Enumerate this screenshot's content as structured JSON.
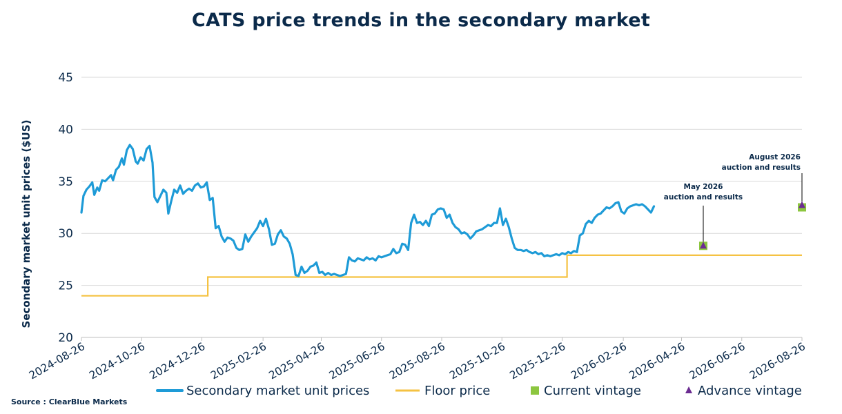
{
  "title": "CATS price trends in the secondary market",
  "source": "Source : ClearBlue Markets",
  "colors": {
    "secondary": "#1e9bd7",
    "floor": "#f5c242",
    "current_vintage": "#8cc63f",
    "advance_vintage": "#6b2c91",
    "grid": "#d9d9d9",
    "text": "#0b2a4a"
  },
  "chart_data": {
    "type": "line",
    "title": "CATS price trends in the secondary market",
    "xlabel": "",
    "ylabel": "Secondary market unit prices ($US)",
    "ylim": [
      20,
      45
    ],
    "y_ticks": [
      "20",
      "25",
      "30",
      "35",
      "40",
      "45"
    ],
    "xlim": [
      "2024-08-26",
      "2026-08-26"
    ],
    "x_ticks": [
      "2024-08-26",
      "2024-10-26",
      "2024-12-26",
      "2025-02-26",
      "2025-04-26",
      "2025-06-26",
      "2025-08-26",
      "2025-10-26",
      "2025-12-26",
      "2026-02-26",
      "2026-04-26",
      "2026-06-26",
      "2026-08-26"
    ],
    "grid": true,
    "legend_position": "bottom",
    "series": [
      {
        "name": "Secondary market unit prices",
        "kind": "line",
        "points": [
          [
            "2024-08-26",
            32.0
          ],
          [
            "2024-08-28",
            33.6
          ],
          [
            "2024-08-31",
            34.2
          ],
          [
            "2024-09-03",
            34.5
          ],
          [
            "2024-09-06",
            34.9
          ],
          [
            "2024-09-08",
            33.7
          ],
          [
            "2024-09-11",
            34.4
          ],
          [
            "2024-09-13",
            34.1
          ],
          [
            "2024-09-16",
            35.1
          ],
          [
            "2024-09-19",
            35.0
          ],
          [
            "2024-09-22",
            35.3
          ],
          [
            "2024-09-25",
            35.6
          ],
          [
            "2024-09-27",
            35.1
          ],
          [
            "2024-09-30",
            36.1
          ],
          [
            "2024-10-03",
            36.4
          ],
          [
            "2024-10-06",
            37.2
          ],
          [
            "2024-10-08",
            36.6
          ],
          [
            "2024-10-11",
            38.0
          ],
          [
            "2024-10-14",
            38.5
          ],
          [
            "2024-10-17",
            38.1
          ],
          [
            "2024-10-20",
            36.9
          ],
          [
            "2024-10-22",
            36.7
          ],
          [
            "2024-10-25",
            37.3
          ],
          [
            "2024-10-28",
            37.0
          ],
          [
            "2024-10-31",
            38.1
          ],
          [
            "2024-11-03",
            38.4
          ],
          [
            "2024-11-06",
            36.8
          ],
          [
            "2024-11-08",
            33.5
          ],
          [
            "2024-11-11",
            33.0
          ],
          [
            "2024-11-14",
            33.6
          ],
          [
            "2024-11-17",
            34.2
          ],
          [
            "2024-11-20",
            33.9
          ],
          [
            "2024-11-22",
            31.9
          ],
          [
            "2024-11-25",
            33.1
          ],
          [
            "2024-11-28",
            34.2
          ],
          [
            "2024-12-01",
            33.9
          ],
          [
            "2024-12-04",
            34.6
          ],
          [
            "2024-12-07",
            33.8
          ],
          [
            "2024-12-10",
            34.1
          ],
          [
            "2024-12-13",
            34.3
          ],
          [
            "2024-12-16",
            34.1
          ],
          [
            "2024-12-19",
            34.6
          ],
          [
            "2024-12-22",
            34.8
          ],
          [
            "2024-12-25",
            34.4
          ],
          [
            "2024-12-28",
            34.5
          ],
          [
            "2024-12-31",
            34.9
          ],
          [
            "2025-01-03",
            33.2
          ],
          [
            "2025-01-06",
            33.4
          ],
          [
            "2025-01-09",
            30.5
          ],
          [
            "2025-01-12",
            30.7
          ],
          [
            "2025-01-15",
            29.7
          ],
          [
            "2025-01-18",
            29.2
          ],
          [
            "2025-01-21",
            29.6
          ],
          [
            "2025-01-24",
            29.5
          ],
          [
            "2025-01-27",
            29.3
          ],
          [
            "2025-01-30",
            28.6
          ],
          [
            "2025-02-02",
            28.4
          ],
          [
            "2025-02-05",
            28.5
          ],
          [
            "2025-02-08",
            29.9
          ],
          [
            "2025-02-11",
            29.2
          ],
          [
            "2025-02-14",
            29.7
          ],
          [
            "2025-02-17",
            30.1
          ],
          [
            "2025-02-20",
            30.5
          ],
          [
            "2025-02-23",
            31.2
          ],
          [
            "2025-02-26",
            30.7
          ],
          [
            "2025-03-01",
            31.4
          ],
          [
            "2025-03-04",
            30.4
          ],
          [
            "2025-03-07",
            28.9
          ],
          [
            "2025-03-10",
            29.0
          ],
          [
            "2025-03-13",
            29.9
          ],
          [
            "2025-03-16",
            30.3
          ],
          [
            "2025-03-19",
            29.7
          ],
          [
            "2025-03-22",
            29.5
          ],
          [
            "2025-03-25",
            29.0
          ],
          [
            "2025-03-28",
            28.0
          ],
          [
            "2025-03-31",
            26.0
          ],
          [
            "2025-04-03",
            25.9
          ],
          [
            "2025-04-06",
            26.8
          ],
          [
            "2025-04-09",
            26.2
          ],
          [
            "2025-04-12",
            26.4
          ],
          [
            "2025-04-15",
            26.8
          ],
          [
            "2025-04-18",
            26.9
          ],
          [
            "2025-04-21",
            27.2
          ],
          [
            "2025-04-24",
            26.2
          ],
          [
            "2025-04-27",
            26.3
          ],
          [
            "2025-04-30",
            26.0
          ],
          [
            "2025-05-03",
            26.2
          ],
          [
            "2025-05-06",
            26.0
          ],
          [
            "2025-05-09",
            26.1
          ],
          [
            "2025-05-12",
            26.0
          ],
          [
            "2025-05-15",
            25.9
          ],
          [
            "2025-05-18",
            26.0
          ],
          [
            "2025-05-21",
            26.1
          ],
          [
            "2025-05-24",
            27.7
          ],
          [
            "2025-05-27",
            27.4
          ],
          [
            "2025-05-30",
            27.3
          ],
          [
            "2025-06-02",
            27.6
          ],
          [
            "2025-06-05",
            27.5
          ],
          [
            "2025-06-08",
            27.4
          ],
          [
            "2025-06-11",
            27.7
          ],
          [
            "2025-06-14",
            27.5
          ],
          [
            "2025-06-17",
            27.6
          ],
          [
            "2025-06-20",
            27.4
          ],
          [
            "2025-06-23",
            27.8
          ],
          [
            "2025-06-26",
            27.7
          ],
          [
            "2025-06-29",
            27.8
          ],
          [
            "2025-07-02",
            27.9
          ],
          [
            "2025-07-05",
            28.0
          ],
          [
            "2025-07-08",
            28.5
          ],
          [
            "2025-07-11",
            28.1
          ],
          [
            "2025-07-14",
            28.2
          ],
          [
            "2025-07-17",
            29.0
          ],
          [
            "2025-07-20",
            28.9
          ],
          [
            "2025-07-23",
            28.4
          ],
          [
            "2025-07-26",
            31.0
          ],
          [
            "2025-07-29",
            31.8
          ],
          [
            "2025-08-01",
            31.0
          ],
          [
            "2025-08-04",
            31.1
          ],
          [
            "2025-08-07",
            30.8
          ],
          [
            "2025-08-10",
            31.2
          ],
          [
            "2025-08-13",
            30.7
          ],
          [
            "2025-08-16",
            31.8
          ],
          [
            "2025-08-19",
            31.9
          ],
          [
            "2025-08-22",
            32.3
          ],
          [
            "2025-08-25",
            32.4
          ],
          [
            "2025-08-28",
            32.3
          ],
          [
            "2025-08-31",
            31.5
          ],
          [
            "2025-09-03",
            31.8
          ],
          [
            "2025-09-06",
            31.0
          ],
          [
            "2025-09-09",
            30.6
          ],
          [
            "2025-09-12",
            30.4
          ],
          [
            "2025-09-15",
            30.0
          ],
          [
            "2025-09-18",
            30.1
          ],
          [
            "2025-09-21",
            29.9
          ],
          [
            "2025-09-24",
            29.5
          ],
          [
            "2025-09-27",
            29.8
          ],
          [
            "2025-09-30",
            30.2
          ],
          [
            "2025-10-03",
            30.3
          ],
          [
            "2025-10-06",
            30.4
          ],
          [
            "2025-10-09",
            30.6
          ],
          [
            "2025-10-12",
            30.8
          ],
          [
            "2025-10-15",
            30.7
          ],
          [
            "2025-10-18",
            31.0
          ],
          [
            "2025-10-21",
            31.0
          ],
          [
            "2025-10-24",
            32.4
          ],
          [
            "2025-10-27",
            30.8
          ],
          [
            "2025-10-30",
            31.4
          ],
          [
            "2025-11-02",
            30.6
          ],
          [
            "2025-11-05",
            29.5
          ],
          [
            "2025-11-08",
            28.6
          ],
          [
            "2025-11-11",
            28.4
          ],
          [
            "2025-11-14",
            28.4
          ],
          [
            "2025-11-17",
            28.3
          ],
          [
            "2025-11-20",
            28.4
          ],
          [
            "2025-11-23",
            28.2
          ],
          [
            "2025-11-26",
            28.1
          ],
          [
            "2025-11-29",
            28.2
          ],
          [
            "2025-12-02",
            28.0
          ],
          [
            "2025-12-05",
            28.1
          ],
          [
            "2025-12-08",
            27.8
          ],
          [
            "2025-12-11",
            27.9
          ],
          [
            "2025-12-14",
            27.8
          ],
          [
            "2025-12-17",
            27.9
          ],
          [
            "2025-12-20",
            28.0
          ],
          [
            "2025-12-23",
            27.9
          ],
          [
            "2025-12-26",
            28.1
          ],
          [
            "2025-12-29",
            28.0
          ],
          [
            "2026-01-01",
            28.2
          ],
          [
            "2026-01-04",
            28.1
          ],
          [
            "2026-01-07",
            28.3
          ],
          [
            "2026-01-10",
            28.2
          ],
          [
            "2026-01-13",
            29.8
          ],
          [
            "2026-01-16",
            30.0
          ],
          [
            "2026-01-19",
            30.9
          ],
          [
            "2026-01-22",
            31.2
          ],
          [
            "2026-01-25",
            31.0
          ],
          [
            "2026-01-28",
            31.5
          ],
          [
            "2026-01-31",
            31.8
          ],
          [
            "2026-02-03",
            31.9
          ],
          [
            "2026-02-06",
            32.2
          ],
          [
            "2026-02-09",
            32.5
          ],
          [
            "2026-02-12",
            32.4
          ],
          [
            "2026-02-15",
            32.6
          ],
          [
            "2026-02-18",
            32.9
          ],
          [
            "2026-02-21",
            33.0
          ],
          [
            "2026-02-24",
            32.1
          ],
          [
            "2026-02-27",
            31.9
          ],
          [
            "2026-03-02",
            32.4
          ],
          [
            "2026-03-05",
            32.6
          ],
          [
            "2026-03-08",
            32.7
          ],
          [
            "2026-03-11",
            32.8
          ],
          [
            "2026-03-14",
            32.7
          ],
          [
            "2026-03-17",
            32.8
          ],
          [
            "2026-03-20",
            32.6
          ],
          [
            "2026-03-23",
            32.3
          ],
          [
            "2026-03-26",
            32.0
          ],
          [
            "2026-03-29",
            32.6
          ]
        ]
      },
      {
        "name": "Floor price",
        "kind": "step",
        "points": [
          [
            "2024-08-26",
            24.0
          ],
          [
            "2025-01-01",
            24.0
          ],
          [
            "2025-01-01",
            25.8
          ],
          [
            "2025-12-31",
            25.8
          ],
          [
            "2025-12-31",
            27.9
          ],
          [
            "2026-08-26",
            27.9
          ]
        ]
      },
      {
        "name": "Current vintage",
        "kind": "marker",
        "marker": "square",
        "points": [
          [
            "2026-05-18",
            28.8
          ],
          [
            "2026-08-26",
            32.5
          ]
        ]
      },
      {
        "name": "Advance vintage",
        "kind": "marker",
        "marker": "triangle",
        "points": [
          [
            "2026-05-18",
            28.8
          ],
          [
            "2026-08-26",
            32.7
          ]
        ]
      }
    ],
    "annotations": [
      {
        "id": "may",
        "lines": [
          "May 2026",
          "auction and results"
        ],
        "date": "2026-05-18",
        "value": 28.8
      },
      {
        "id": "aug",
        "lines": [
          "August 2026",
          "auction and results"
        ],
        "date": "2026-08-26",
        "value": 32.7
      }
    ]
  }
}
